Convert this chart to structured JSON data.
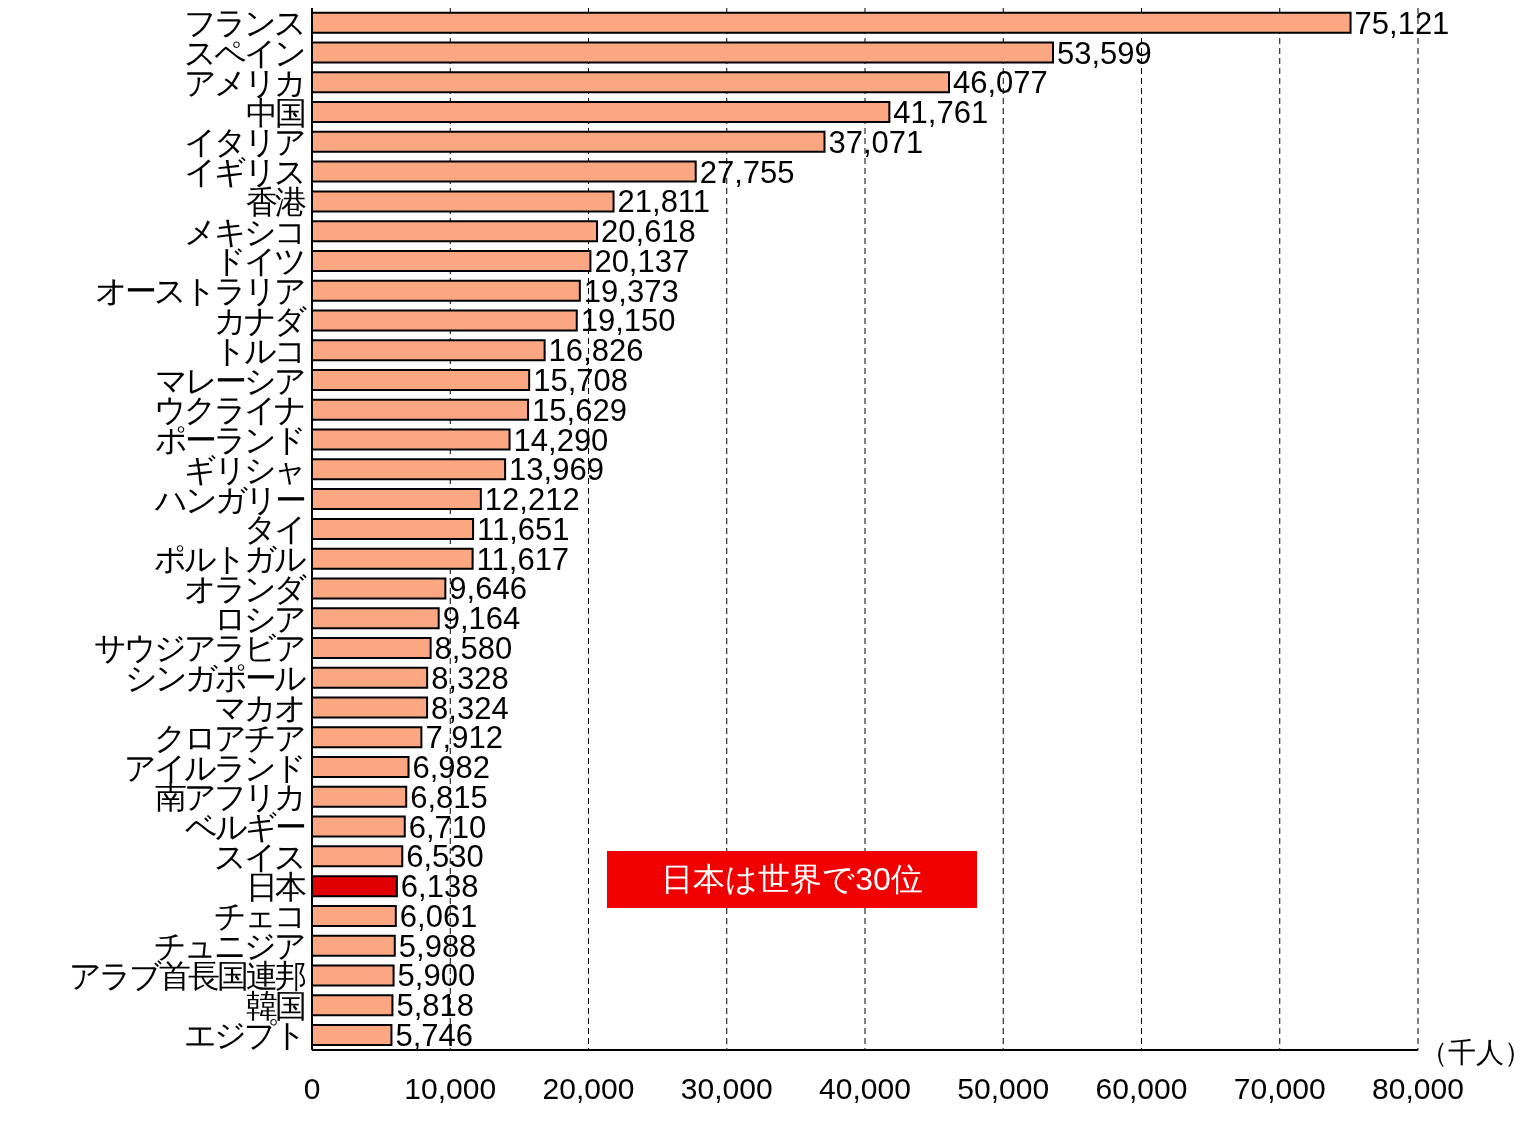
{
  "chart_data": {
    "type": "bar",
    "orientation": "horizontal",
    "categories": [
      "フランス",
      "スペイン",
      "アメリカ",
      "中国",
      "イタリア",
      "イギリス",
      "香港",
      "メキシコ",
      "ドイツ",
      "オーストラリア",
      "カナダ",
      "トルコ",
      "マレーシア",
      "ウクライナ",
      "ポーランド",
      "ギリシャ",
      "ハンガリー",
      "タイ",
      "ポルトガル",
      "オランダ",
      "ロシア",
      "サウジアラビア",
      "シンガポール",
      "マカオ",
      "クロアチア",
      "アイルランド",
      "南アフリカ",
      "ベルギー",
      "スイス",
      "日本",
      "チェコ",
      "チュニジア",
      "アラブ首長国連邦",
      "韓国",
      "エジプト"
    ],
    "values": [
      75121,
      53599,
      46077,
      41761,
      37071,
      27755,
      21811,
      20618,
      20137,
      19373,
      19150,
      16826,
      15708,
      15629,
      14290,
      13969,
      12212,
      11651,
      11617,
      9646,
      9164,
      8580,
      8328,
      8324,
      7912,
      6982,
      6815,
      6710,
      6530,
      6138,
      6061,
      5988,
      5900,
      5818,
      5746
    ],
    "colors": [
      "#fba882",
      "#fba882",
      "#fba882",
      "#fba882",
      "#fba882",
      "#fba882",
      "#fba882",
      "#fba882",
      "#fba882",
      "#fba882",
      "#fba882",
      "#fba882",
      "#fba882",
      "#fba882",
      "#fba882",
      "#fba882",
      "#fba882",
      "#fba882",
      "#fba882",
      "#fba882",
      "#fba882",
      "#fba882",
      "#fba882",
      "#fba882",
      "#fba882",
      "#fba882",
      "#fba882",
      "#fba882",
      "#fba882",
      "#e00000",
      "#fba882",
      "#fba882",
      "#fba882",
      "#fba882",
      "#fba882"
    ],
    "value_labels": [
      "75,121",
      "53,599",
      "46,077",
      "41,761",
      "37,071",
      "27,755",
      "21,811",
      "20,618",
      "20,137",
      "19,373",
      "19,150",
      "16,826",
      "15,708",
      "15,629",
      "14,290",
      "13,969",
      "12,212",
      "11,651",
      "11,617",
      "9,646",
      "9,164",
      "8,580",
      "8,328",
      "8,324",
      "7,912",
      "6,982",
      "6,815",
      "6,710",
      "6,530",
      "6,138",
      "6,061",
      "5,988",
      "5,900",
      "5,818",
      "5,746"
    ],
    "xlim": [
      0,
      80000
    ],
    "xticks": [
      0,
      {
        "value": 10000,
        "label": "10,000"
      },
      {
        "value": 20000,
        "label": "20,000"
      },
      {
        "value": 30000,
        "label": "30,000"
      },
      {
        "value": 40000,
        "label": "40,000"
      },
      {
        "value": 50000,
        "label": "50,000"
      },
      {
        "value": 60000,
        "label": "60,000"
      },
      {
        "value": 70000,
        "label": "70,000"
      },
      {
        "value": 80000,
        "label": "80,000"
      }
    ],
    "xlabel": "（千人）",
    "grid": "x",
    "annotations": [
      "日本は世界で30位"
    ]
  }
}
